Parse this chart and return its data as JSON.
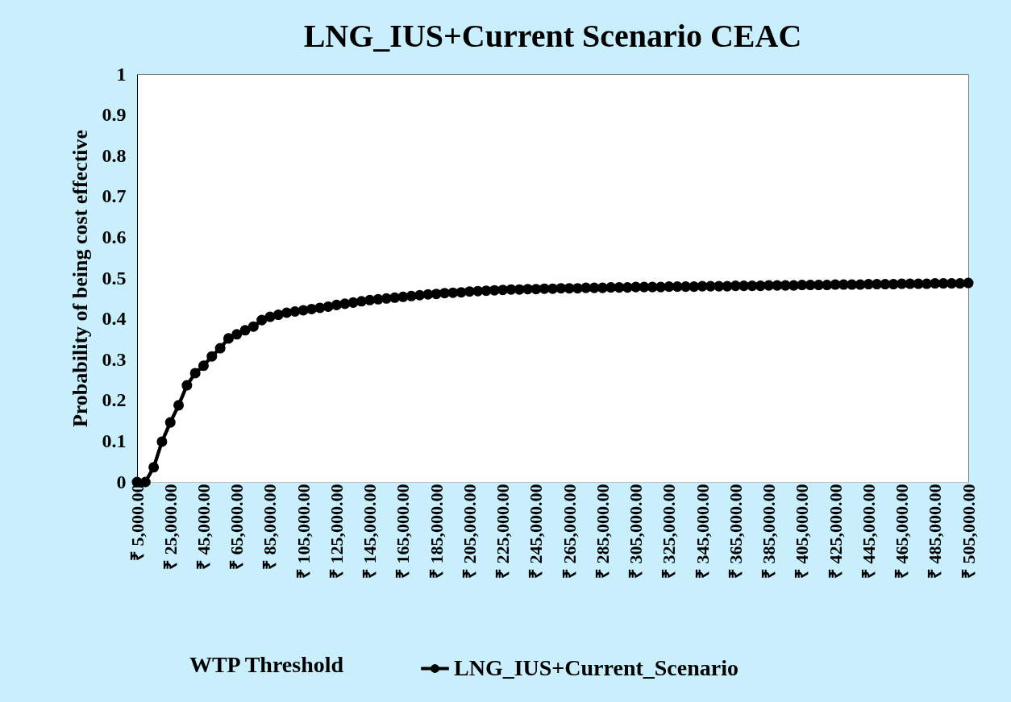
{
  "chart_data": {
    "type": "line",
    "title": "LNG_IUS+Current Scenario CEAC",
    "xlabel": "WTP Threshold",
    "ylabel": "Probability of being cost effective",
    "x": [
      5000,
      10000,
      15000,
      20000,
      25000,
      30000,
      35000,
      40000,
      45000,
      50000,
      55000,
      60000,
      65000,
      70000,
      75000,
      80000,
      85000,
      90000,
      95000,
      100000,
      105000,
      110000,
      115000,
      120000,
      125000,
      130000,
      135000,
      140000,
      145000,
      150000,
      155000,
      160000,
      165000,
      170000,
      175000,
      180000,
      185000,
      190000,
      195000,
      200000,
      205000,
      210000,
      215000,
      220000,
      225000,
      230000,
      235000,
      240000,
      245000,
      250000,
      255000,
      260000,
      265000,
      270000,
      275000,
      280000,
      285000,
      290000,
      295000,
      300000,
      305000,
      310000,
      315000,
      320000,
      325000,
      330000,
      335000,
      340000,
      345000,
      350000,
      355000,
      360000,
      365000,
      370000,
      375000,
      380000,
      385000,
      390000,
      395000,
      400000,
      405000,
      410000,
      415000,
      420000,
      425000,
      430000,
      435000,
      440000,
      445000,
      450000,
      455000,
      460000,
      465000,
      470000,
      475000,
      480000,
      485000,
      490000,
      495000,
      500000,
      505000
    ],
    "series": [
      {
        "name": "LNG_IUS+Current_Scenario",
        "color": "#000000",
        "values": [
          0,
          0,
          0.036,
          0.099,
          0.146,
          0.188,
          0.237,
          0.267,
          0.285,
          0.308,
          0.328,
          0.352,
          0.362,
          0.372,
          0.381,
          0.397,
          0.405,
          0.41,
          0.415,
          0.418,
          0.421,
          0.424,
          0.427,
          0.43,
          0.434,
          0.437,
          0.44,
          0.443,
          0.446,
          0.448,
          0.45,
          0.452,
          0.454,
          0.456,
          0.458,
          0.46,
          0.461,
          0.463,
          0.464,
          0.465,
          0.467,
          0.468,
          0.469,
          0.47,
          0.471,
          0.472,
          0.472,
          0.473,
          0.473,
          0.474,
          0.474,
          0.475,
          0.475,
          0.475,
          0.476,
          0.476,
          0.476,
          0.477,
          0.477,
          0.477,
          0.478,
          0.478,
          0.478,
          0.478,
          0.479,
          0.479,
          0.479,
          0.479,
          0.48,
          0.48,
          0.48,
          0.48,
          0.481,
          0.481,
          0.481,
          0.481,
          0.482,
          0.482,
          0.482,
          0.482,
          0.483,
          0.483,
          0.483,
          0.483,
          0.484,
          0.484,
          0.484,
          0.484,
          0.485,
          0.485,
          0.485,
          0.485,
          0.486,
          0.486,
          0.486,
          0.486,
          0.487,
          0.487,
          0.487,
          0.487,
          0.488
        ]
      }
    ],
    "xlim": [
      5000,
      505000
    ],
    "xticks": [
      {
        "value": 5000,
        "label": "₹ 5,000.00"
      },
      {
        "value": 25000,
        "label": "₹ 25,000.00"
      },
      {
        "value": 45000,
        "label": "₹ 45,000.00"
      },
      {
        "value": 65000,
        "label": "₹ 65,000.00"
      },
      {
        "value": 85000,
        "label": "₹ 85,000.00"
      },
      {
        "value": 105000,
        "label": "₹ 105,000.00"
      },
      {
        "value": 125000,
        "label": "₹ 125,000.00"
      },
      {
        "value": 145000,
        "label": "₹ 145,000.00"
      },
      {
        "value": 165000,
        "label": "₹ 165,000.00"
      },
      {
        "value": 185000,
        "label": "₹ 185,000.00"
      },
      {
        "value": 205000,
        "label": "₹ 205,000.00"
      },
      {
        "value": 225000,
        "label": "₹ 225,000.00"
      },
      {
        "value": 245000,
        "label": "₹ 245,000.00"
      },
      {
        "value": 265000,
        "label": "₹ 265,000.00"
      },
      {
        "value": 285000,
        "label": "₹ 285,000.00"
      },
      {
        "value": 305000,
        "label": "₹ 305,000.00"
      },
      {
        "value": 325000,
        "label": "₹ 325,000.00"
      },
      {
        "value": 345000,
        "label": "₹ 345,000.00"
      },
      {
        "value": 365000,
        "label": "₹ 365,000.00"
      },
      {
        "value": 385000,
        "label": "₹ 385,000.00"
      },
      {
        "value": 405000,
        "label": "₹ 405,000.00"
      },
      {
        "value": 425000,
        "label": "₹ 425,000.00"
      },
      {
        "value": 445000,
        "label": "₹ 445,000.00"
      },
      {
        "value": 465000,
        "label": "₹ 465,000.00"
      },
      {
        "value": 485000,
        "label": "₹ 485,000.00"
      },
      {
        "value": 505000,
        "label": "₹ 505,000.00"
      }
    ],
    "ylim": [
      0,
      1
    ],
    "yticks": [
      0,
      0.1,
      0.2,
      0.3,
      0.4,
      0.5,
      0.6,
      0.7,
      0.8,
      0.9,
      1
    ],
    "grid": false,
    "legend": "bottom",
    "marker": "circle",
    "line_style": "solid"
  }
}
